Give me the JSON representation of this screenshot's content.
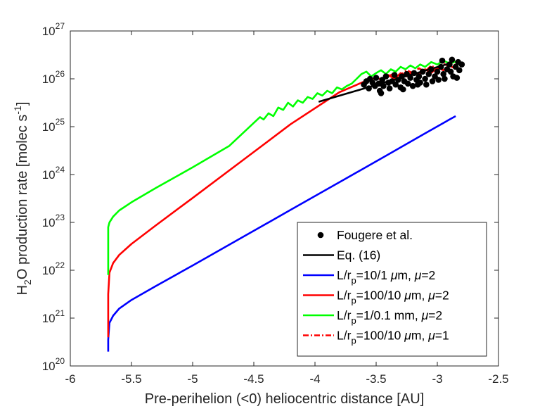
{
  "chart_data": {
    "type": "line",
    "xlabel": "Pre-perihelion (<0) heliocentric distance [AU]",
    "ylabel_parts": [
      "H",
      "2",
      "O production rate [molec s",
      "-1",
      "]"
    ],
    "xlim": [
      -6,
      -2.5
    ],
    "ylim_log10": [
      20,
      27
    ],
    "x_ticks": [
      -6,
      -5.5,
      -5,
      -4.5,
      -4,
      -3.5,
      -3,
      -2.5
    ],
    "x_tick_labels": [
      "-6",
      "-5.5",
      "-5",
      "-4.5",
      "-4",
      "-3.5",
      "-3",
      "-2.5"
    ],
    "y_tick_base": "10",
    "y_tick_exponents": [
      "20",
      "21",
      "22",
      "23",
      "24",
      "25",
      "26",
      "27"
    ],
    "legend": {
      "position": "lower-right",
      "entries": [
        {
          "key": "fougere",
          "parts": [
            [
              "Fougere et al.",
              "n"
            ]
          ]
        },
        {
          "key": "eq16",
          "parts": [
            [
              "Eq. (16)",
              "n"
            ]
          ]
        },
        {
          "key": "blue",
          "parts": [
            [
              "L/r",
              "n"
            ],
            [
              "p",
              "sub"
            ],
            [
              "=10/1 ",
              "n"
            ],
            [
              "μ",
              "i"
            ],
            [
              "m, ",
              "n"
            ],
            [
              "μ",
              "i"
            ],
            [
              "=2",
              "n"
            ]
          ]
        },
        {
          "key": "red",
          "parts": [
            [
              "L/r",
              "n"
            ],
            [
              "p",
              "sub"
            ],
            [
              "=100/10 ",
              "n"
            ],
            [
              "μ",
              "i"
            ],
            [
              "m, ",
              "n"
            ],
            [
              "μ",
              "i"
            ],
            [
              "=2",
              "n"
            ]
          ]
        },
        {
          "key": "green",
          "parts": [
            [
              "L/r",
              "n"
            ],
            [
              "p",
              "sub"
            ],
            [
              "=1/0.1 mm, ",
              "n"
            ],
            [
              "μ",
              "i"
            ],
            [
              "=2",
              "n"
            ]
          ]
        },
        {
          "key": "reddash",
          "parts": [
            [
              "L/r",
              "n"
            ],
            [
              "p",
              "sub"
            ],
            [
              "=100/10 ",
              "n"
            ],
            [
              "μ",
              "i"
            ],
            [
              "m, ",
              "n"
            ],
            [
              "μ",
              "i"
            ],
            [
              "=1",
              "n"
            ]
          ]
        }
      ]
    },
    "series": [
      {
        "key": "blue",
        "name": "L/rp=10/1 μm, μ=2",
        "color": "#0000ff",
        "style": "solid",
        "x": [
          -5.69,
          -5.69,
          -5.68,
          -5.65,
          -5.6,
          -5.5,
          -5.3,
          -5.0,
          -4.6,
          -4.2,
          -3.8,
          -3.4,
          -3.1,
          -2.9,
          -2.85
        ],
        "log10y": [
          20.3,
          20.55,
          20.9,
          21.05,
          21.2,
          21.38,
          21.67,
          22.1,
          22.68,
          23.26,
          23.84,
          24.42,
          24.86,
          25.15,
          25.22
        ]
      },
      {
        "key": "red",
        "name": "L/rp=100/10 μm, μ=2",
        "color": "#ff0000",
        "style": "solid",
        "x": [
          -5.69,
          -5.69,
          -5.68,
          -5.65,
          -5.6,
          -5.5,
          -5.3,
          -5.0,
          -4.6,
          -4.2,
          -3.8,
          -3.6,
          -3.5,
          -3.45,
          -3.4,
          -3.35,
          -3.3,
          -3.25,
          -3.2,
          -3.15,
          -3.1,
          -3.05,
          -3.0,
          -2.95,
          -2.9,
          -2.86
        ],
        "log10y": [
          20.6,
          21.5,
          21.95,
          22.15,
          22.32,
          22.55,
          22.94,
          23.51,
          24.28,
          25.05,
          25.72,
          25.94,
          26.02,
          25.98,
          26.08,
          26.0,
          26.12,
          26.05,
          26.15,
          26.1,
          26.2,
          26.12,
          26.24,
          26.18,
          26.28,
          26.22
        ]
      },
      {
        "key": "green",
        "name": "L/rp=1/0.1 mm, μ=2",
        "color": "#00ff00",
        "style": "solid",
        "x": [
          -5.69,
          -5.69,
          -5.68,
          -5.65,
          -5.6,
          -5.5,
          -5.3,
          -5.0,
          -4.7,
          -4.45,
          -4.42,
          -4.38,
          -4.34,
          -4.3,
          -4.26,
          -4.22,
          -4.18,
          -4.14,
          -4.1,
          -4.06,
          -4.02,
          -3.98,
          -3.94,
          -3.9,
          -3.86,
          -3.82,
          -3.78,
          -3.74,
          -3.7,
          -3.66,
          -3.62,
          -3.58,
          -3.54,
          -3.5,
          -3.46,
          -3.42,
          -3.38,
          -3.34,
          -3.3,
          -3.26,
          -3.22,
          -3.18,
          -3.14,
          -3.1,
          -3.05,
          -3.0,
          -2.95,
          -2.9,
          -2.85
        ],
        "log10y": [
          21.9,
          22.9,
          23.0,
          23.12,
          23.25,
          23.42,
          23.72,
          24.15,
          24.6,
          25.2,
          25.15,
          25.28,
          25.22,
          25.4,
          25.35,
          25.5,
          25.42,
          25.55,
          25.5,
          25.62,
          25.58,
          25.7,
          25.65,
          25.75,
          25.7,
          25.82,
          25.78,
          25.85,
          25.9,
          26.0,
          26.1,
          26.15,
          26.05,
          26.12,
          26.18,
          26.1,
          26.2,
          26.15,
          26.25,
          26.2,
          26.28,
          26.22,
          26.3,
          26.25,
          26.35,
          26.3,
          26.38,
          26.32,
          26.36
        ]
      },
      {
        "key": "reddash",
        "name": "L/rp=100/10 μm, μ=1",
        "color": "#ff0000",
        "style": "dashdot",
        "x": [
          -3.4,
          -3.35,
          -3.3,
          -3.25,
          -3.2,
          -3.15,
          -3.1,
          -3.05,
          -3.0,
          -2.95,
          -2.9,
          -2.85
        ],
        "log10y": [
          26.05,
          26.12,
          26.08,
          26.18,
          26.12,
          26.22,
          26.15,
          26.28,
          26.2,
          26.32,
          26.25,
          26.3
        ]
      },
      {
        "key": "eq16",
        "name": "Eq. (16)",
        "color": "#000000",
        "style": "solid",
        "x": [
          -3.97,
          -2.9
        ],
        "log10y": [
          25.52,
          26.32
        ]
      }
    ],
    "scatter": {
      "key": "fougere",
      "name": "Fougere et al.",
      "color": "#000000",
      "points": [
        [
          -3.6,
          25.88
        ],
        [
          -3.58,
          25.95
        ],
        [
          -3.56,
          25.8
        ],
        [
          -3.55,
          26.0
        ],
        [
          -3.53,
          25.92
        ],
        [
          -3.51,
          25.85
        ],
        [
          -3.5,
          26.02
        ],
        [
          -3.48,
          25.9
        ],
        [
          -3.47,
          25.75
        ],
        [
          -3.45,
          25.98
        ],
        [
          -3.44,
          25.85
        ],
        [
          -3.42,
          26.05
        ],
        [
          -3.4,
          25.92
        ],
        [
          -3.39,
          25.8
        ],
        [
          -3.37,
          25.95
        ],
        [
          -3.35,
          26.08
        ],
        [
          -3.34,
          25.88
        ],
        [
          -3.32,
          25.98
        ],
        [
          -3.3,
          25.82
        ],
        [
          -3.29,
          26.05
        ],
        [
          -3.27,
          25.95
        ],
        [
          -3.25,
          26.1
        ],
        [
          -3.24,
          25.9
        ],
        [
          -3.22,
          26.02
        ],
        [
          -3.2,
          25.85
        ],
        [
          -3.19,
          26.12
        ],
        [
          -3.17,
          25.98
        ],
        [
          -3.15,
          26.05
        ],
        [
          -3.14,
          25.92
        ],
        [
          -3.12,
          26.15
        ],
        [
          -3.1,
          26.0
        ],
        [
          -3.09,
          25.88
        ],
        [
          -3.07,
          26.1
        ],
        [
          -3.05,
          26.2
        ],
        [
          -3.04,
          25.95
        ],
        [
          -3.02,
          26.05
        ],
        [
          -3.0,
          26.15
        ],
        [
          -2.99,
          25.98
        ],
        [
          -2.97,
          26.25
        ],
        [
          -2.95,
          26.1
        ],
        [
          -2.94,
          26.0
        ],
        [
          -2.92,
          26.2
        ],
        [
          -2.9,
          26.3
        ],
        [
          -2.89,
          26.15
        ],
        [
          -2.87,
          26.05
        ],
        [
          -2.85,
          26.25
        ],
        [
          -2.83,
          26.35
        ],
        [
          -2.82,
          26.18
        ],
        [
          -2.8,
          26.3
        ],
        [
          -2.96,
          26.38
        ],
        [
          -2.88,
          26.4
        ],
        [
          -3.46,
          25.7
        ],
        [
          -3.28,
          25.78
        ],
        [
          -3.16,
          25.88
        ],
        [
          -2.84,
          26.02
        ]
      ]
    }
  }
}
